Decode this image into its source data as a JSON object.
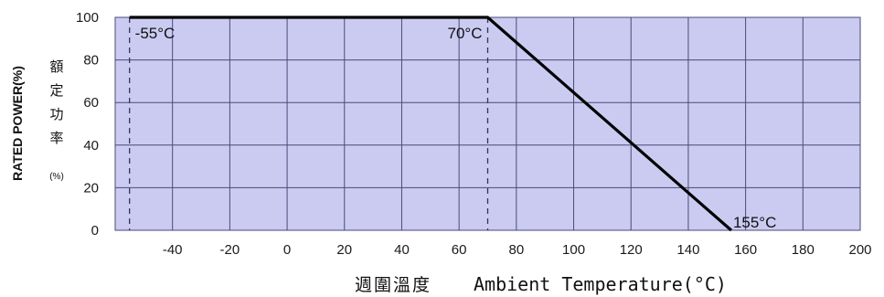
{
  "chart_data": {
    "type": "line",
    "title": "",
    "ylabel": "RATED POWER(%)",
    "ylabel_cn": [
      "額",
      "定",
      "功",
      "率"
    ],
    "ylabel_cn_unit": "(%)",
    "xlabel_cn": "週圍溫度",
    "xlabel": "Ambient Temperature(°C)",
    "xlim": [
      -60,
      200
    ],
    "ylim": [
      0,
      100
    ],
    "x_ticks": [
      -40,
      -20,
      0,
      20,
      40,
      60,
      80,
      100,
      120,
      140,
      160,
      180,
      200
    ],
    "y_ticks": [
      0,
      20,
      40,
      60,
      80,
      100
    ],
    "grid": true,
    "series": [
      {
        "x": [
          -55,
          70,
          155
        ],
        "y": [
          100,
          100,
          0
        ]
      }
    ],
    "reference_lines": [
      {
        "x": -55,
        "label": "-55°C"
      },
      {
        "x": 70,
        "label": "70°C"
      }
    ],
    "annotations": [
      {
        "x": 155,
        "y": 0,
        "label": "155°C"
      }
    ],
    "colors": {
      "plot_background": "#cbcbf2",
      "grid": "#4a4a78",
      "line": "#000000"
    }
  }
}
